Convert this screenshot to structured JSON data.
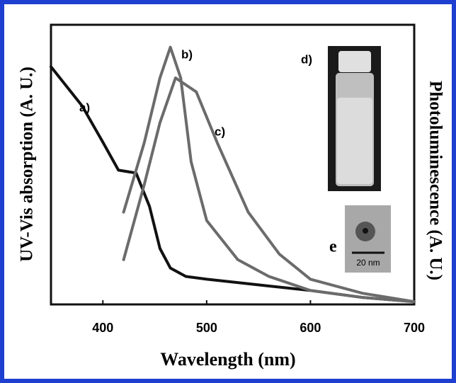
{
  "chart_data": {
    "type": "line",
    "xlabel": "Wavelength (nm)",
    "ylabel": "UV-Vis absorption (A. U.)",
    "y2label": "Photoluminescence (A. U.)",
    "xlim": [
      350,
      700
    ],
    "xticks": [
      400,
      500,
      600,
      700
    ],
    "ylim": [
      0,
      1
    ],
    "annotations": [
      "d)",
      "e",
      "20 nm"
    ],
    "series": [
      {
        "name": "a)",
        "color": "#111111",
        "x": [
          350,
          380,
          400,
          415,
          432,
          445,
          455,
          465,
          480,
          500,
          550,
          600,
          650,
          700
        ],
        "values": [
          0.85,
          0.71,
          0.58,
          0.48,
          0.47,
          0.35,
          0.2,
          0.13,
          0.1,
          0.09,
          0.07,
          0.05,
          0.025,
          0.01
        ]
      },
      {
        "name": "b)",
        "color": "#6b6b6b",
        "x": [
          420,
          440,
          455,
          465,
          475,
          485,
          500,
          530,
          560,
          600,
          650,
          700
        ],
        "values": [
          0.33,
          0.58,
          0.81,
          0.92,
          0.81,
          0.51,
          0.3,
          0.16,
          0.1,
          0.05,
          0.025,
          0.01
        ]
      },
      {
        "name": "c)",
        "color": "#6b6b6b",
        "x": [
          420,
          440,
          455,
          470,
          490,
          510,
          540,
          570,
          600,
          650,
          700
        ],
        "values": [
          0.16,
          0.43,
          0.65,
          0.81,
          0.76,
          0.58,
          0.33,
          0.18,
          0.09,
          0.04,
          0.01
        ]
      }
    ]
  }
}
